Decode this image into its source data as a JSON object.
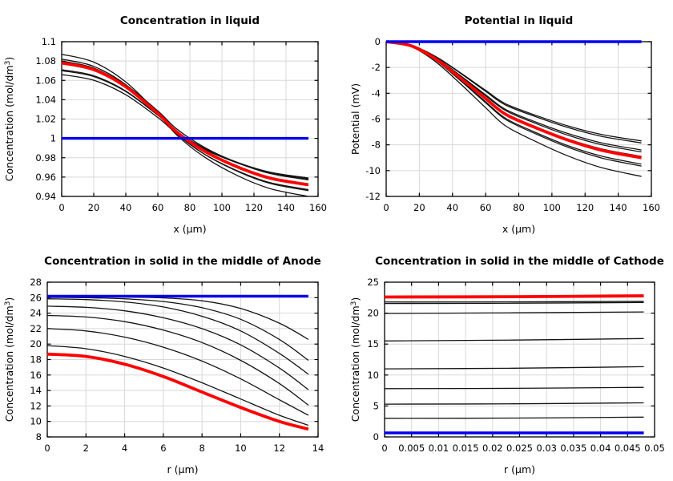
{
  "figure": {
    "background": "#ffffff",
    "rows": 2,
    "cols": 2
  },
  "colors": {
    "curve_black": "#141414",
    "curve_red": "#ff0000",
    "curve_blue": "#0000ee",
    "grid": "#d8d8d8",
    "axis": "#000000",
    "text": "#000000"
  },
  "chart_data": [
    {
      "type": "line",
      "title": "Concentration in liquid",
      "xlabel": "x (µm)",
      "ylabel": "Concentration (mol/dm³)",
      "xlim": [
        0,
        160
      ],
      "ylim": [
        0.94,
        1.1
      ],
      "grid": true,
      "legend": "none",
      "xticks": [
        0,
        20,
        40,
        60,
        80,
        100,
        120,
        140,
        160
      ],
      "xtick_labels": [
        "0",
        "20",
        "40",
        "60",
        "80",
        "100",
        "120",
        "140",
        "160"
      ],
      "yticks": [
        0.94,
        0.96,
        0.98,
        1,
        1.02,
        1.04,
        1.06,
        1.08,
        1.1
      ],
      "ytick_labels": [
        "0.94",
        "0.96",
        "0.98",
        "1",
        "1.02",
        "1.04",
        "1.06",
        "1.08",
        "1.1"
      ],
      "series": [
        {
          "name": "curve-1",
          "color": "black",
          "width": 1.3,
          "x": [
            0,
            20,
            40,
            60,
            72,
            90,
            110,
            130,
            154
          ],
          "y": [
            1.087,
            1.0789,
            1.0583,
            1.026,
            1.0032,
            0.9797,
            0.9613,
            0.9481,
            0.94
          ]
        },
        {
          "name": "curve-2",
          "color": "black",
          "width": 1.3,
          "x": [
            0,
            20,
            40,
            60,
            72,
            90,
            110,
            130,
            154
          ],
          "y": [
            1.082,
            1.0745,
            1.0555,
            1.0256,
            1.0045,
            0.9827,
            0.9657,
            0.9535,
            0.946
          ]
        },
        {
          "name": "curve-3",
          "color": "black",
          "width": 1.3,
          "x": [
            0,
            20,
            40,
            60,
            72,
            90,
            110,
            130,
            154
          ],
          "y": [
            1.08,
            1.0727,
            1.0541,
            1.0248,
            1.0042,
            0.9829,
            0.9663,
            0.9543,
            0.947
          ]
        },
        {
          "name": "curve-4",
          "color": "black",
          "width": 1.3,
          "x": [
            0,
            20,
            40,
            60,
            72,
            90,
            110,
            130,
            154
          ],
          "y": [
            1.079,
            1.0723,
            1.0552,
            1.0284,
            1.0095,
            0.9899,
            0.9747,
            0.9637,
            0.957
          ]
        },
        {
          "name": "curve-5",
          "color": "black",
          "width": 1.3,
          "x": [
            0,
            20,
            40,
            60,
            72,
            90,
            110,
            130,
            154
          ],
          "y": [
            1.071,
            1.0648,
            1.049,
            1.0241,
            1.0066,
            0.9885,
            0.9744,
            0.9642,
            0.958
          ]
        },
        {
          "name": "curve-6",
          "color": "black",
          "width": 1.3,
          "x": [
            0,
            20,
            40,
            60,
            72,
            90,
            110,
            130,
            154
          ],
          "y": [
            1.07,
            1.0639,
            1.0484,
            1.0239,
            1.0067,
            0.989,
            0.9751,
            0.9651,
            0.959
          ]
        },
        {
          "name": "curve-7",
          "color": "black",
          "width": 1.3,
          "x": [
            0,
            20,
            40,
            60,
            72,
            90,
            110,
            130,
            154
          ],
          "y": [
            1.066,
            1.0601,
            1.0451,
            1.0216,
            1.005,
            0.9879,
            0.9745,
            0.9649,
            0.959
          ]
        },
        {
          "name": "curve-highlight",
          "color": "red",
          "width": 3.8,
          "x": [
            0,
            20,
            40,
            60,
            72,
            90,
            110,
            130,
            154
          ],
          "y": [
            1.078,
            1.0711,
            1.0534,
            1.0257,
            1.0062,
            0.986,
            0.9703,
            0.9589,
            0.952
          ]
        },
        {
          "name": "curve-baseline",
          "color": "blue",
          "width": 3.4,
          "x": [
            0,
            154
          ],
          "y": [
            1,
            1
          ]
        }
      ]
    },
    {
      "type": "line",
      "title": "Potential in liquid",
      "xlabel": "x (µm)",
      "ylabel": "Potential (mV)",
      "xlim": [
        0,
        160
      ],
      "ylim": [
        -12,
        0
      ],
      "grid": true,
      "legend": "none",
      "xticks": [
        0,
        20,
        40,
        60,
        80,
        100,
        120,
        140,
        160
      ],
      "xtick_labels": [
        "0",
        "20",
        "40",
        "60",
        "80",
        "100",
        "120",
        "140",
        "160"
      ],
      "yticks": [
        -12,
        -10,
        -8,
        -6,
        -4,
        -2,
        0
      ],
      "ytick_labels": [
        "-12",
        "-10",
        "-8",
        "-6",
        "-4",
        "-2",
        "0"
      ],
      "series": [
        {
          "name": "curve-1",
          "color": "black",
          "width": 1.3,
          "x": [
            0,
            15,
            30,
            45,
            60,
            72,
            90,
            110,
            130,
            154
          ],
          "y": [
            0,
            -0.27,
            -1.16,
            -2.43,
            -3.77,
            -4.81,
            -5.7,
            -6.55,
            -7.2,
            -7.7
          ]
        },
        {
          "name": "curve-2",
          "color": "black",
          "width": 1.3,
          "x": [
            0,
            15,
            30,
            45,
            60,
            72,
            90,
            110,
            130,
            154
          ],
          "y": [
            0,
            -0.27,
            -1.18,
            -2.47,
            -3.85,
            -4.91,
            -5.81,
            -6.67,
            -7.34,
            -7.85
          ]
        },
        {
          "name": "curve-3",
          "color": "black",
          "width": 1.3,
          "x": [
            0,
            15,
            30,
            45,
            60,
            72,
            90,
            110,
            130,
            154
          ],
          "y": [
            0,
            -0.29,
            -1.26,
            -2.65,
            -4.12,
            -5.25,
            -6.22,
            -7.14,
            -7.85,
            -8.4
          ]
        },
        {
          "name": "curve-4",
          "color": "black",
          "width": 1.3,
          "x": [
            0,
            15,
            30,
            45,
            60,
            72,
            90,
            110,
            130,
            154
          ],
          "y": [
            0,
            -0.3,
            -1.28,
            -2.69,
            -4.19,
            -5.34,
            -6.33,
            -7.27,
            -7.99,
            -8.55
          ]
        },
        {
          "name": "curve-5",
          "color": "black",
          "width": 1.3,
          "x": [
            0,
            15,
            30,
            45,
            60,
            72,
            90,
            110,
            130,
            154
          ],
          "y": [
            0,
            -0.31,
            -1.34,
            -2.8,
            -4.36,
            -5.56,
            -6.59,
            -7.57,
            -8.32,
            -8.9
          ]
        },
        {
          "name": "curve-6",
          "color": "black",
          "width": 1.3,
          "x": [
            0,
            15,
            30,
            45,
            60,
            72,
            90,
            110,
            130,
            154
          ],
          "y": [
            0,
            -0.33,
            -1.43,
            -2.99,
            -4.66,
            -5.94,
            -7.03,
            -8.08,
            -8.88,
            -9.5
          ]
        },
        {
          "name": "curve-7",
          "color": "black",
          "width": 1.3,
          "x": [
            0,
            15,
            30,
            45,
            60,
            72,
            90,
            110,
            130,
            154
          ],
          "y": [
            0,
            -0.34,
            -1.45,
            -3.04,
            -4.73,
            -6.03,
            -7.14,
            -8.2,
            -9.02,
            -9.65
          ]
        },
        {
          "name": "curve-8",
          "color": "black",
          "width": 1.3,
          "x": [
            0,
            15,
            30,
            45,
            60,
            72,
            90,
            110,
            130,
            154
          ],
          "y": [
            0,
            -0.37,
            -1.57,
            -3.29,
            -5.12,
            -6.53,
            -7.73,
            -8.88,
            -9.77,
            -10.45
          ]
        },
        {
          "name": "curve-highlight",
          "color": "red",
          "width": 3.8,
          "x": [
            0,
            15,
            30,
            45,
            60,
            72,
            90,
            110,
            130,
            154
          ],
          "y": [
            0,
            -0.32,
            -1.35,
            -2.84,
            -4.41,
            -5.63,
            -6.66,
            -7.65,
            -8.42,
            -9
          ]
        },
        {
          "name": "curve-baseline",
          "color": "blue",
          "width": 3.4,
          "x": [
            0,
            154
          ],
          "y": [
            0,
            0
          ]
        }
      ]
    },
    {
      "type": "line",
      "title": "Concentration in solid in the middle of Anode",
      "xlabel": "r (µm)",
      "ylabel": "Concentration (mol/dm³)",
      "xlim": [
        0,
        14
      ],
      "ylim": [
        8,
        28
      ],
      "grid": true,
      "legend": "none",
      "xticks": [
        0,
        2,
        4,
        6,
        8,
        10,
        12,
        14
      ],
      "xtick_labels": [
        "0",
        "2",
        "4",
        "6",
        "8",
        "10",
        "12",
        "14"
      ],
      "yticks": [
        8,
        10,
        12,
        14,
        16,
        18,
        20,
        22,
        24,
        26,
        28
      ],
      "ytick_labels": [
        "8",
        "10",
        "12",
        "14",
        "16",
        "18",
        "20",
        "22",
        "24",
        "26",
        "28"
      ],
      "series": [
        {
          "name": "curve-1",
          "color": "black",
          "width": 1.3,
          "x": [
            0,
            2,
            4,
            6,
            8,
            10,
            12,
            13.5
          ],
          "y": [
            26.15,
            26.13,
            26.08,
            25.97,
            25.6,
            24.6,
            22.7,
            20.6
          ]
        },
        {
          "name": "curve-2",
          "color": "black",
          "width": 1.3,
          "x": [
            0,
            2,
            4,
            6,
            8,
            10,
            12,
            13.5
          ],
          "y": [
            26.05,
            26.0,
            25.85,
            25.5,
            24.7,
            23.2,
            20.6,
            17.9
          ]
        },
        {
          "name": "curve-3",
          "color": "black",
          "width": 1.3,
          "x": [
            0,
            2,
            4,
            6,
            8,
            10,
            12,
            13.5
          ],
          "y": [
            25.85,
            25.75,
            25.45,
            24.8,
            23.6,
            21.7,
            18.8,
            16.1
          ]
        },
        {
          "name": "curve-4",
          "color": "black",
          "width": 1.3,
          "x": [
            0,
            2,
            4,
            6,
            8,
            10,
            12,
            13.5
          ],
          "y": [
            24.9,
            24.75,
            24.3,
            23.4,
            22.0,
            19.9,
            16.9,
            14.1
          ]
        },
        {
          "name": "curve-5",
          "color": "black",
          "width": 1.3,
          "x": [
            0,
            2,
            4,
            6,
            8,
            10,
            12,
            13.5
          ],
          "y": [
            23.7,
            23.5,
            22.9,
            21.8,
            20.2,
            17.9,
            14.9,
            12.1
          ]
        },
        {
          "name": "curve-6",
          "color": "black",
          "width": 1.3,
          "x": [
            0,
            2,
            4,
            6,
            8,
            10,
            12,
            13.5
          ],
          "y": [
            22.0,
            21.7,
            20.9,
            19.6,
            17.8,
            15.5,
            12.8,
            10.8
          ]
        },
        {
          "name": "curve-7",
          "color": "black",
          "width": 1.3,
          "x": [
            0,
            2,
            4,
            6,
            8,
            10,
            12,
            13.5
          ],
          "y": [
            19.8,
            19.4,
            18.4,
            16.9,
            15.0,
            12.9,
            10.8,
            9.5
          ]
        },
        {
          "name": "curve-highlight",
          "color": "red",
          "width": 3.8,
          "x": [
            0,
            2,
            4,
            6,
            8,
            10,
            12,
            13.5
          ],
          "y": [
            18.7,
            18.4,
            17.4,
            15.8,
            13.8,
            11.8,
            10.0,
            9.0
          ]
        },
        {
          "name": "curve-baseline",
          "color": "blue",
          "width": 3.4,
          "x": [
            0,
            13.5
          ],
          "y": [
            26.2,
            26.2
          ]
        }
      ]
    },
    {
      "type": "line",
      "title": "Concentration in solid in the middle of Cathode",
      "xlabel": "r (µm)",
      "ylabel": "Concentration (mol/dm³)",
      "xlim": [
        0,
        0.05
      ],
      "ylim": [
        0,
        25
      ],
      "grid": true,
      "legend": "none",
      "xticks": [
        0,
        0.005,
        0.01,
        0.015,
        0.02,
        0.025,
        0.03,
        0.035,
        0.04,
        0.045,
        0.05
      ],
      "xtick_labels": [
        "0",
        "0.005",
        "0.01",
        "0.015",
        "0.02",
        "0.025",
        "0.03",
        "0.035",
        "0.04",
        "0.045",
        "0.05"
      ],
      "yticks": [
        0,
        5,
        10,
        15,
        20,
        25
      ],
      "ytick_labels": [
        "0",
        "5",
        "10",
        "15",
        "20",
        "25"
      ],
      "series": [
        {
          "name": "curve-1",
          "color": "black",
          "width": 1.3,
          "x": [
            0,
            0.024,
            0.048
          ],
          "y": [
            21.8,
            21.82,
            21.9
          ]
        },
        {
          "name": "curve-2",
          "color": "black",
          "width": 1.3,
          "x": [
            0,
            0.024,
            0.048
          ],
          "y": [
            21.55,
            21.6,
            21.72
          ]
        },
        {
          "name": "curve-3",
          "color": "black",
          "width": 1.3,
          "x": [
            0,
            0.024,
            0.048
          ],
          "y": [
            19.95,
            20.05,
            20.2
          ]
        },
        {
          "name": "curve-4",
          "color": "black",
          "width": 1.3,
          "x": [
            0,
            0.024,
            0.048
          ],
          "y": [
            15.5,
            15.65,
            15.9
          ]
        },
        {
          "name": "curve-5",
          "color": "black",
          "width": 1.3,
          "x": [
            0,
            0.024,
            0.048
          ],
          "y": [
            11.0,
            11.1,
            11.35
          ]
        },
        {
          "name": "curve-6",
          "color": "black",
          "width": 1.3,
          "x": [
            0,
            0.024,
            0.048
          ],
          "y": [
            7.8,
            7.85,
            8.0
          ]
        },
        {
          "name": "curve-7",
          "color": "black",
          "width": 1.3,
          "x": [
            0,
            0.024,
            0.048
          ],
          "y": [
            5.3,
            5.35,
            5.5
          ]
        },
        {
          "name": "curve-8",
          "color": "black",
          "width": 1.3,
          "x": [
            0,
            0.024,
            0.048
          ],
          "y": [
            3.0,
            3.05,
            3.2
          ]
        },
        {
          "name": "curve-highlight",
          "color": "red",
          "width": 3.8,
          "x": [
            0,
            0.024,
            0.048
          ],
          "y": [
            22.6,
            22.65,
            22.8
          ]
        },
        {
          "name": "curve-baseline",
          "color": "blue",
          "width": 3.4,
          "x": [
            0,
            0.048
          ],
          "y": [
            0.65,
            0.65
          ]
        }
      ]
    }
  ]
}
